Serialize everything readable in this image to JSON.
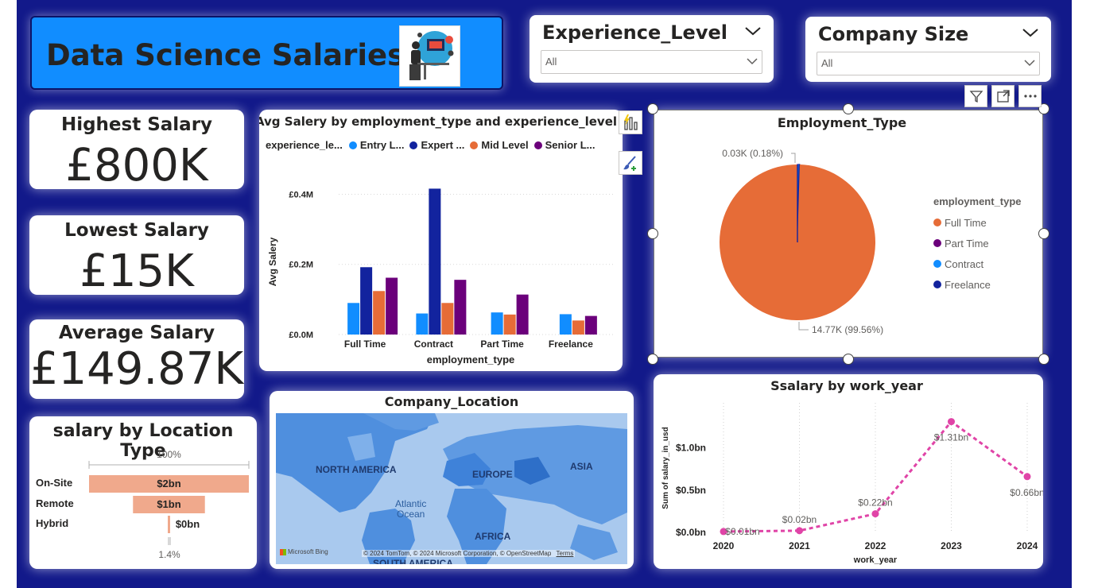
{
  "header": {
    "title": "Data Science Salaries",
    "banner_color": "#118dff"
  },
  "slicers": {
    "experience": {
      "title": "Experience_Level",
      "value": "All"
    },
    "company_size": {
      "title": "Company Size",
      "value": "All"
    }
  },
  "kpis": {
    "highest": {
      "title": "Highest Salary",
      "value": "£800K"
    },
    "lowest": {
      "title": "Lowest Salary",
      "value": "£15K"
    },
    "average": {
      "title": "Average Salary",
      "value": "£149.87K"
    }
  },
  "bar_chart": {
    "title": "Avg Salery by employment_type and experience_level",
    "legend_title": "experience_le...",
    "legend": [
      {
        "label": "Entry L...",
        "color": "#118dff"
      },
      {
        "label": "Expert ...",
        "color": "#12239e"
      },
      {
        "label": "Mid Level",
        "color": "#e66c37"
      },
      {
        "label": "Senior L...",
        "color": "#6b007b"
      }
    ]
  },
  "pie_chart": {
    "title": "Employment_Type",
    "legend_title": "employment_type",
    "legend": [
      {
        "label": "Full Time",
        "color": "#e66c37"
      },
      {
        "label": "Part Time",
        "color": "#6b007b"
      },
      {
        "label": "Contract",
        "color": "#118dff"
      },
      {
        "label": "Freelance",
        "color": "#12239e"
      }
    ],
    "label_small": "0.03K (0.18%)",
    "label_large": "14.77K (99.56%)"
  },
  "funnel": {
    "title": "salary by Location Type",
    "top_pct": "100%",
    "bottom_pct": "1.4%",
    "color": "#f0a98c",
    "rows": [
      {
        "label": "On-Site",
        "value_label": "$2bn",
        "fraction": 1.0
      },
      {
        "label": "Remote",
        "value_label": "$1bn",
        "fraction": 0.45
      },
      {
        "label": "Hybrid",
        "value_label": "$0bn",
        "fraction": 0.014
      }
    ]
  },
  "map": {
    "title": "Company_Location",
    "labels": {
      "na": "NORTH AMERICA",
      "europe": "EUROPE",
      "asia": "ASIA",
      "africa": "AFRICA",
      "sa": "SOUTH AMERICA",
      "atlantic": "Atlantic\nOcean"
    },
    "atlantic_1": "Atlantic",
    "atlantic_2": "Ocean",
    "attribution": "© 2024 TomTom, © 2024 Microsoft Corporation, © OpenStreetMap",
    "terms": "Terms",
    "bing": "Microsoft Bing"
  },
  "line_chart": {
    "title": "Ssalary by work_year"
  },
  "chart_data": [
    {
      "type": "bar",
      "title": "Avg Salery by employment_type and experience_level",
      "xlabel": "employment_type",
      "ylabel": "Avg Salery",
      "categories": [
        "Full Time",
        "Contract",
        "Part Time",
        "Freelance"
      ],
      "yticks": [
        "£0.0M",
        "£0.2M",
        "£0.4M"
      ],
      "ylim": [
        0,
        0.46
      ],
      "series": [
        {
          "name": "Entry L...",
          "values": [
            0.09,
            0.06,
            0.063,
            0.058
          ],
          "color": "#118dff"
        },
        {
          "name": "Expert ...",
          "values": [
            0.192,
            0.416,
            null,
            null
          ],
          "color": "#12239e"
        },
        {
          "name": "Mid Level",
          "values": [
            0.124,
            0.09,
            0.057,
            0.04
          ],
          "color": "#e66c37"
        },
        {
          "name": "Senior L...",
          "values": [
            0.162,
            0.156,
            0.114,
            0.053
          ],
          "color": "#6b007b"
        }
      ]
    },
    {
      "type": "pie",
      "title": "Employment_Type",
      "slices": [
        {
          "label": "Full Time",
          "value": 14.77,
          "pct": 99.56,
          "color": "#e66c37"
        },
        {
          "label": "Part Time",
          "value": 0.03,
          "pct": 0.18,
          "color": "#6b007b"
        },
        {
          "label": "Contract",
          "value": 0.02,
          "pct": 0.13,
          "color": "#118dff"
        },
        {
          "label": "Freelance",
          "value": 0.02,
          "pct": 0.13,
          "color": "#12239e"
        }
      ]
    },
    {
      "type": "line",
      "title": "Ssalary by work_year",
      "xlabel": "work_year",
      "ylabel": "Sum of salary_in_usd",
      "x": [
        "2020",
        "2021",
        "2022",
        "2023",
        "2024"
      ],
      "y": [
        0.01,
        0.02,
        0.22,
        1.31,
        0.66
      ],
      "data_labels": [
        "$0.01bn",
        "$0.02bn",
        "$0.22bn",
        "$1.31bn",
        "$0.66bn"
      ],
      "yticks": [
        "$0.0bn",
        "$0.5bn",
        "$1.0bn"
      ],
      "ylim": [
        0,
        1.4
      ],
      "color": "#e044a7"
    }
  ]
}
